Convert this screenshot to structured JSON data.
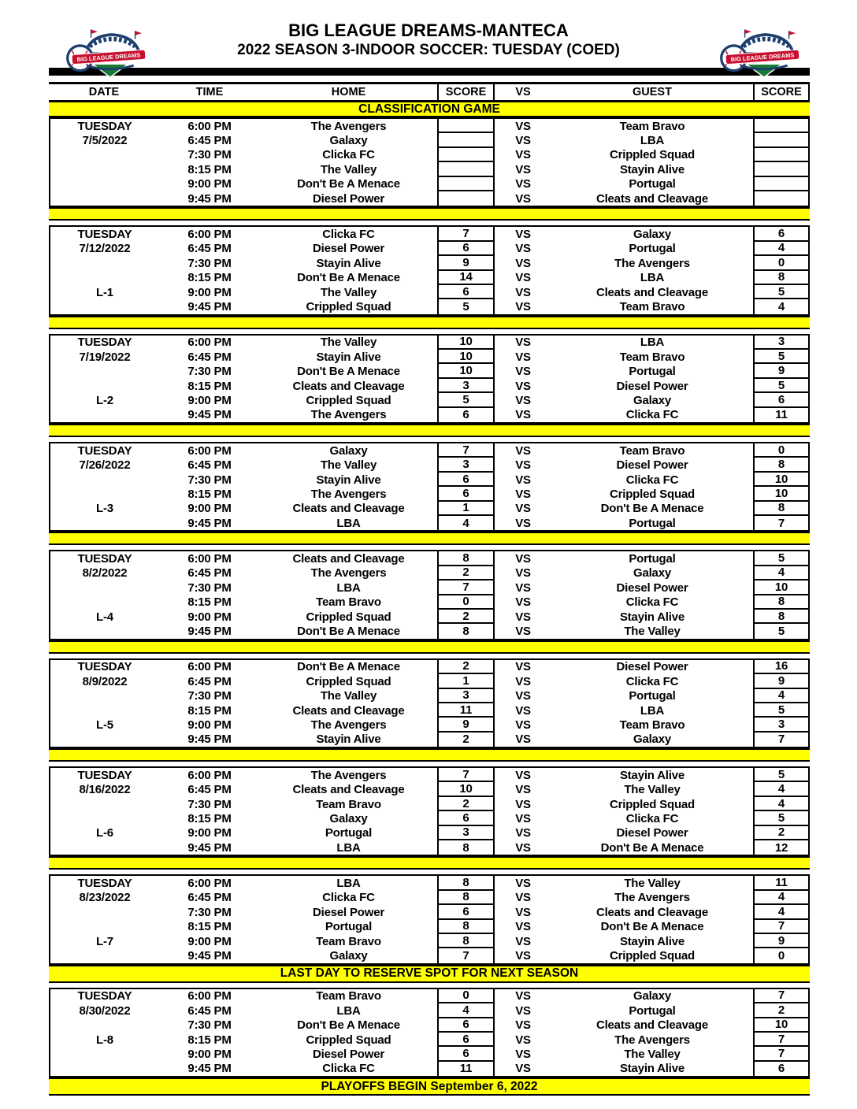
{
  "header": {
    "title": "BIG LEAGUE DREAMS-MANTECA",
    "subtitle": "2022 SEASON 3-INDOOR SOCCER: TUESDAY (COED)",
    "logo_text": "BIG LEAGUE DREAMS"
  },
  "columns": [
    "DATE",
    "TIME",
    "HOME",
    "SCORE",
    "VS",
    "GUEST",
    "SCORE"
  ],
  "vs_label": "VS",
  "banners": {
    "classification": "CLASSIFICATION GAME",
    "last_day": "LAST DAY TO RESERVE SPOT FOR NEXT SEASON",
    "playoffs": "PLAYOFFS BEGIN September 6, 2022"
  },
  "colors": {
    "band_yellow": "#ffff00",
    "line_black": "#000000",
    "logo_navy": "#1e3f6e",
    "logo_red": "#c8102e",
    "logo_green": "#157a33"
  },
  "blocks": [
    {
      "day": "TUESDAY",
      "date": "7/5/2022",
      "separator_after": "plain",
      "games": [
        {
          "time": "6:00 PM",
          "home": "The Avengers",
          "home_score": "",
          "guest": "Team Bravo",
          "guest_score": "",
          "row_label": ""
        },
        {
          "time": "6:45 PM",
          "home": "Galaxy",
          "home_score": "",
          "guest": "LBA",
          "guest_score": "",
          "row_label": ""
        },
        {
          "time": "7:30 PM",
          "home": "Clicka FC",
          "home_score": "",
          "guest": "Crippled Squad",
          "guest_score": "",
          "row_label": ""
        },
        {
          "time": "8:15 PM",
          "home": "The Valley",
          "home_score": "",
          "guest": "Stayin Alive",
          "guest_score": "",
          "row_label": ""
        },
        {
          "time": "9:00 PM",
          "home": "Don't Be A Menace",
          "home_score": "",
          "guest": "Portugal",
          "guest_score": "",
          "row_label": ""
        },
        {
          "time": "9:45 PM",
          "home": "Diesel Power",
          "home_score": "",
          "guest": "Cleats and Cleavage",
          "guest_score": "",
          "row_label": ""
        }
      ]
    },
    {
      "day": "TUESDAY",
      "date": "7/12/2022",
      "separator_after": "plain",
      "games": [
        {
          "time": "6:00 PM",
          "home": "Clicka FC",
          "home_score": "7",
          "guest": "Galaxy",
          "guest_score": "6",
          "row_label": ""
        },
        {
          "time": "6:45 PM",
          "home": "Diesel Power",
          "home_score": "6",
          "guest": "Portugal",
          "guest_score": "4",
          "row_label": ""
        },
        {
          "time": "7:30 PM",
          "home": "Stayin Alive",
          "home_score": "9",
          "guest": "The Avengers",
          "guest_score": "0",
          "row_label": ""
        },
        {
          "time": "8:15 PM",
          "home": "Don't Be A Menace",
          "home_score": "14",
          "guest": "LBA",
          "guest_score": "8",
          "row_label": ""
        },
        {
          "time": "9:00 PM",
          "home": "The Valley",
          "home_score": "6",
          "guest": "Cleats and Cleavage",
          "guest_score": "5",
          "row_label": "L-1"
        },
        {
          "time": "9:45 PM",
          "home": "Crippled Squad",
          "home_score": "5",
          "guest": "Team Bravo",
          "guest_score": "4",
          "row_label": ""
        }
      ]
    },
    {
      "day": "TUESDAY",
      "date": "7/19/2022",
      "separator_after": "plain",
      "games": [
        {
          "time": "6:00 PM",
          "home": "The Valley",
          "home_score": "10",
          "guest": "LBA",
          "guest_score": "3",
          "row_label": ""
        },
        {
          "time": "6:45 PM",
          "home": "Stayin Alive",
          "home_score": "10",
          "guest": "Team Bravo",
          "guest_score": "5",
          "row_label": ""
        },
        {
          "time": "7:30 PM",
          "home": "Don't Be A Menace",
          "home_score": "10",
          "guest": "Portugal",
          "guest_score": "9",
          "row_label": ""
        },
        {
          "time": "8:15 PM",
          "home": "Cleats and Cleavage",
          "home_score": "3",
          "guest": "Diesel Power",
          "guest_score": "5",
          "row_label": ""
        },
        {
          "time": "9:00 PM",
          "home": "Crippled Squad",
          "home_score": "5",
          "guest": "Galaxy",
          "guest_score": "6",
          "row_label": "L-2"
        },
        {
          "time": "9:45 PM",
          "home": "The Avengers",
          "home_score": "6",
          "guest": "Clicka FC",
          "guest_score": "11",
          "row_label": ""
        }
      ]
    },
    {
      "day": "TUESDAY",
      "date": "7/26/2022",
      "separator_after": "plain",
      "games": [
        {
          "time": "6:00 PM",
          "home": "Galaxy",
          "home_score": "7",
          "guest": "Team Bravo",
          "guest_score": "0",
          "row_label": ""
        },
        {
          "time": "6:45 PM",
          "home": "The Valley",
          "home_score": "3",
          "guest": "Diesel Power",
          "guest_score": "8",
          "row_label": ""
        },
        {
          "time": "7:30 PM",
          "home": "Stayin Alive",
          "home_score": "6",
          "guest": "Clicka FC",
          "guest_score": "10",
          "row_label": ""
        },
        {
          "time": "8:15 PM",
          "home": "The Avengers",
          "home_score": "6",
          "guest": "Crippled Squad",
          "guest_score": "10",
          "row_label": ""
        },
        {
          "time": "9:00 PM",
          "home": "Cleats and Cleavage",
          "home_score": "1",
          "guest": "Don't Be A Menace",
          "guest_score": "8",
          "row_label": "L-3"
        },
        {
          "time": "9:45 PM",
          "home": "LBA",
          "home_score": "4",
          "guest": "Portugal",
          "guest_score": "7",
          "row_label": ""
        }
      ]
    },
    {
      "day": "TUESDAY",
      "date": "8/2/2022",
      "separator_after": "plain",
      "games": [
        {
          "time": "6:00 PM",
          "home": "Cleats and Cleavage",
          "home_score": "8",
          "guest": "Portugal",
          "guest_score": "5",
          "row_label": ""
        },
        {
          "time": "6:45 PM",
          "home": "The Avengers",
          "home_score": "2",
          "guest": "Galaxy",
          "guest_score": "4",
          "row_label": ""
        },
        {
          "time": "7:30 PM",
          "home": "LBA",
          "home_score": "7",
          "guest": "Diesel Power",
          "guest_score": "10",
          "row_label": ""
        },
        {
          "time": "8:15 PM",
          "home": "Team Bravo",
          "home_score": "0",
          "guest": "Clicka FC",
          "guest_score": "8",
          "row_label": ""
        },
        {
          "time": "9:00 PM",
          "home": "Crippled Squad",
          "home_score": "2",
          "guest": "Stayin Alive",
          "guest_score": "8",
          "row_label": "L-4"
        },
        {
          "time": "9:45 PM",
          "home": "Don't Be A Menace",
          "home_score": "8",
          "guest": "The Valley",
          "guest_score": "5",
          "row_label": ""
        }
      ]
    },
    {
      "day": "TUESDAY",
      "date": "8/9/2022",
      "separator_after": "plain",
      "games": [
        {
          "time": "6:00 PM",
          "home": "Don't Be A Menace",
          "home_score": "2",
          "guest": "Diesel Power",
          "guest_score": "16",
          "row_label": ""
        },
        {
          "time": "6:45 PM",
          "home": "Crippled Squad",
          "home_score": "1",
          "guest": "Clicka FC",
          "guest_score": "9",
          "row_label": ""
        },
        {
          "time": "7:30 PM",
          "home": "The Valley",
          "home_score": "3",
          "guest": "Portugal",
          "guest_score": "4",
          "row_label": ""
        },
        {
          "time": "8:15 PM",
          "home": "Cleats and Cleavage",
          "home_score": "11",
          "guest": "LBA",
          "guest_score": "5",
          "row_label": ""
        },
        {
          "time": "9:00 PM",
          "home": "The Avengers",
          "home_score": "9",
          "guest": "Team Bravo",
          "guest_score": "3",
          "row_label": "L-5"
        },
        {
          "time": "9:45 PM",
          "home": "Stayin Alive",
          "home_score": "2",
          "guest": "Galaxy",
          "guest_score": "7",
          "row_label": ""
        }
      ]
    },
    {
      "day": "TUESDAY",
      "date": "8/16/2022",
      "separator_after": "plain",
      "games": [
        {
          "time": "6:00 PM",
          "home": "The Avengers",
          "home_score": "7",
          "guest": "Stayin Alive",
          "guest_score": "5",
          "row_label": ""
        },
        {
          "time": "6:45 PM",
          "home": "Cleats and Cleavage",
          "home_score": "10",
          "guest": "The Valley",
          "guest_score": "4",
          "row_label": ""
        },
        {
          "time": "7:30 PM",
          "home": "Team Bravo",
          "home_score": "2",
          "guest": "Crippled Squad",
          "guest_score": "4",
          "row_label": ""
        },
        {
          "time": "8:15 PM",
          "home": "Galaxy",
          "home_score": "6",
          "guest": "Clicka FC",
          "guest_score": "5",
          "row_label": ""
        },
        {
          "time": "9:00 PM",
          "home": "Portugal",
          "home_score": "3",
          "guest": "Diesel Power",
          "guest_score": "2",
          "row_label": "L-6"
        },
        {
          "time": "9:45 PM",
          "home": "LBA",
          "home_score": "8",
          "guest": "Don't Be A Menace",
          "guest_score": "12",
          "row_label": ""
        }
      ]
    },
    {
      "day": "TUESDAY",
      "date": "8/23/2022",
      "separator_after": "last_day",
      "games": [
        {
          "time": "6:00 PM",
          "home": "LBA",
          "home_score": "8",
          "guest": "The Valley",
          "guest_score": "11",
          "row_label": ""
        },
        {
          "time": "6:45 PM",
          "home": "Clicka FC",
          "home_score": "8",
          "guest": "The Avengers",
          "guest_score": "4",
          "row_label": ""
        },
        {
          "time": "7:30 PM",
          "home": "Diesel Power",
          "home_score": "6",
          "guest": "Cleats and Cleavage",
          "guest_score": "4",
          "row_label": ""
        },
        {
          "time": "8:15 PM",
          "home": "Portugal",
          "home_score": "8",
          "guest": "Don't Be A Menace",
          "guest_score": "7",
          "row_label": ""
        },
        {
          "time": "9:00 PM",
          "home": "Team Bravo",
          "home_score": "8",
          "guest": "Stayin Alive",
          "guest_score": "9",
          "row_label": "L-7"
        },
        {
          "time": "9:45 PM",
          "home": "Galaxy",
          "home_score": "7",
          "guest": "Crippled Squad",
          "guest_score": "0",
          "row_label": ""
        }
      ]
    },
    {
      "day": "TUESDAY",
      "date": "8/30/2022",
      "separator_after": "playoffs",
      "games": [
        {
          "time": "6:00 PM",
          "home": "Team Bravo",
          "home_score": "0",
          "guest": "Galaxy",
          "guest_score": "7",
          "row_label": ""
        },
        {
          "time": "6:45 PM",
          "home": "LBA",
          "home_score": "4",
          "guest": "Portugal",
          "guest_score": "2",
          "row_label": ""
        },
        {
          "time": "7:30 PM",
          "home": "Don't Be A Menace",
          "home_score": "6",
          "guest": "Cleats and Cleavage",
          "guest_score": "10",
          "row_label": ""
        },
        {
          "time": "8:15 PM",
          "home": "Crippled Squad",
          "home_score": "6",
          "guest": "The Avengers",
          "guest_score": "7",
          "row_label": "L-8"
        },
        {
          "time": "9:00 PM",
          "home": "Diesel Power",
          "home_score": "6",
          "guest": "The Valley",
          "guest_score": "7",
          "row_label": ""
        },
        {
          "time": "9:45 PM",
          "home": "Clicka FC",
          "home_score": "11",
          "guest": "Stayin Alive",
          "guest_score": "6",
          "row_label": ""
        }
      ]
    }
  ]
}
